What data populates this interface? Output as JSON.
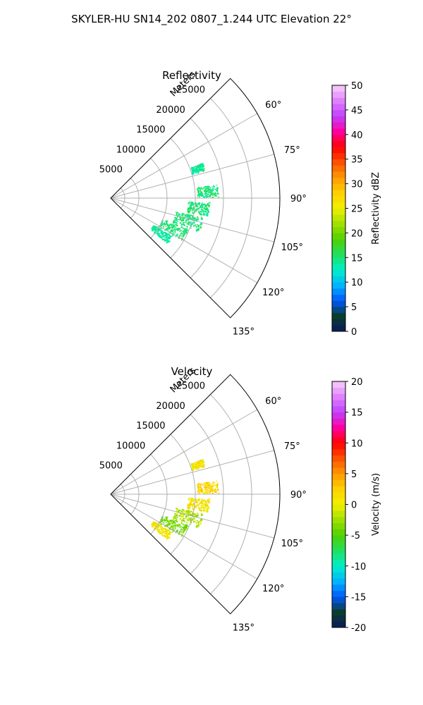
{
  "figure": {
    "suptitle": "SKYLER-HU  SN14_202  0807_1.244 UTC Elevation 22°"
  },
  "colormap_stops": [
    "#0a1a5a",
    "#0b3d2e",
    "#0057ff",
    "#00b4ff",
    "#00f0c8",
    "#20e060",
    "#50d000",
    "#a0e000",
    "#f0f000",
    "#ffd000",
    "#ff9a00",
    "#ff5000",
    "#ff0000",
    "#ff00a0",
    "#c040ff",
    "#e080ff",
    "#f8d0f8"
  ],
  "chart_data": [
    {
      "type": "heatmap",
      "subtype": "polar-sector (PPI)",
      "title": "Reflectivity",
      "range_label": "Meters",
      "range_ticks": [
        5000,
        10000,
        15000,
        20000,
        25000
      ],
      "range_max": 30000,
      "azimuth_range_deg": [
        45,
        135
      ],
      "azimuth_ticks": [
        "60°",
        "75°",
        "90°",
        "105°",
        "120°",
        "135°"
      ],
      "azimuth_tick_values": [
        60,
        75,
        90,
        105,
        120,
        135
      ],
      "grid": true,
      "colorbar": {
        "label": "Reflectivity dBZ",
        "min": 0,
        "max": 50,
        "ticks": [
          0,
          5,
          10,
          15,
          20,
          25,
          30,
          35,
          40,
          45,
          50
        ]
      },
      "echo_clusters": [
        {
          "az_center": 71,
          "range_center": 16200,
          "az_width": 4,
          "range_width": 2000,
          "value": 14
        },
        {
          "az_center": 86,
          "range_center": 17200,
          "az_width": 6,
          "range_width": 3500,
          "value": 15
        },
        {
          "az_center": 96,
          "range_center": 15500,
          "az_width": 7,
          "range_width": 3500,
          "value": 15
        },
        {
          "az_center": 106,
          "range_center": 14200,
          "az_width": 8,
          "range_width": 4500,
          "value": 15
        },
        {
          "az_center": 116,
          "range_center": 12200,
          "az_width": 8,
          "range_width": 4500,
          "value": 15
        },
        {
          "az_center": 125,
          "range_center": 10800,
          "az_width": 6,
          "range_width": 3500,
          "value": 14
        }
      ]
    },
    {
      "type": "heatmap",
      "subtype": "polar-sector (PPI)",
      "title": "Velocity",
      "range_label": "Meters",
      "range_ticks": [
        5000,
        10000,
        15000,
        20000,
        25000
      ],
      "range_max": 30000,
      "azimuth_range_deg": [
        45,
        135
      ],
      "azimuth_ticks": [
        "60°",
        "75°",
        "90°",
        "105°",
        "120°",
        "135°"
      ],
      "azimuth_tick_values": [
        60,
        75,
        90,
        105,
        120,
        135
      ],
      "grid": true,
      "colorbar": {
        "label": "Velocity (m/s)",
        "min": -20,
        "max": 20,
        "ticks": [
          -20,
          -15,
          -10,
          -5,
          0,
          5,
          10,
          15,
          20
        ]
      },
      "echo_clusters": [
        {
          "az_center": 71,
          "range_center": 16200,
          "az_width": 4,
          "range_width": 2000,
          "value": 1
        },
        {
          "az_center": 86,
          "range_center": 17200,
          "az_width": 6,
          "range_width": 3500,
          "value": 2
        },
        {
          "az_center": 96,
          "range_center": 15500,
          "az_width": 7,
          "range_width": 3500,
          "value": 1
        },
        {
          "az_center": 106,
          "range_center": 14200,
          "az_width": 8,
          "range_width": 4500,
          "value": -2
        },
        {
          "az_center": 116,
          "range_center": 12200,
          "az_width": 8,
          "range_width": 4500,
          "value": -4
        },
        {
          "az_center": 125,
          "range_center": 10800,
          "az_width": 6,
          "range_width": 3500,
          "value": 1
        }
      ]
    }
  ]
}
